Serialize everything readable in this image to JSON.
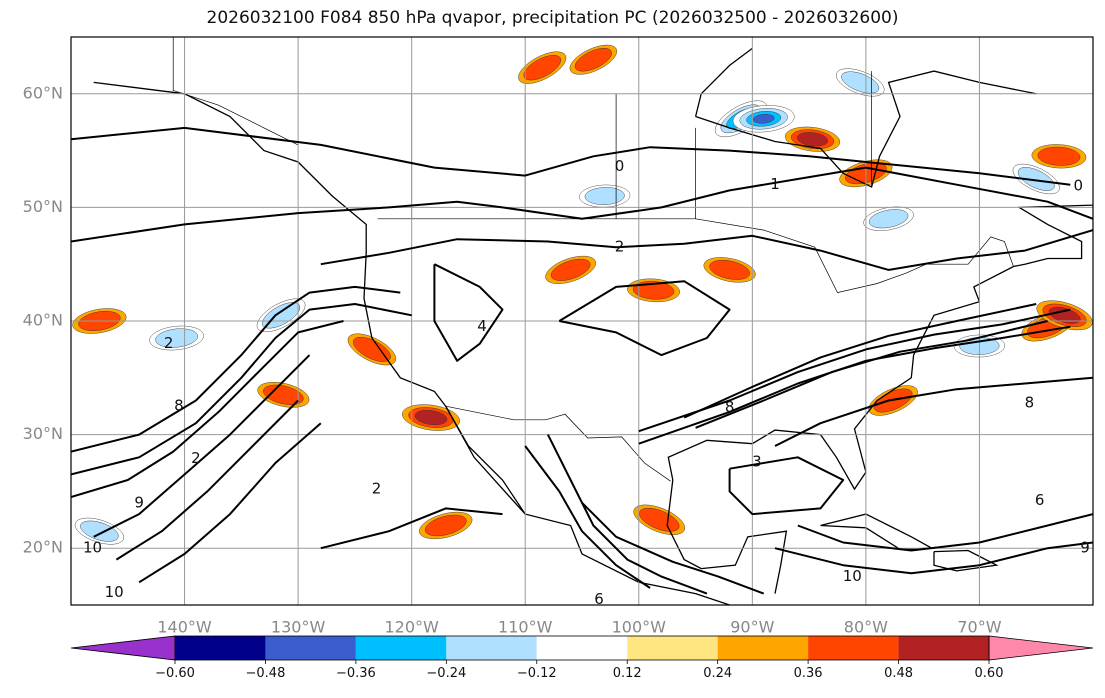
{
  "title": "2026032100 F084 850 hPa qvapor, precipitation PC (2026032500 - 2026032600)",
  "chart_data": {
    "type": "heatmap",
    "title": "2026032100 F084 850 hPa qvapor, precipitation PC (2026032500 - 2026032600)",
    "lon_range": [
      -150,
      -60
    ],
    "lat_range": [
      15,
      65
    ],
    "lat_ticks": [
      {
        "value": 20,
        "label": "20°N"
      },
      {
        "value": 30,
        "label": "30°N"
      },
      {
        "value": 40,
        "label": "40°N"
      },
      {
        "value": 50,
        "label": "50°N"
      },
      {
        "value": 60,
        "label": "60°N"
      }
    ],
    "lon_ticks": [
      {
        "value": -140,
        "label": "140°W"
      },
      {
        "value": -130,
        "label": "130°W"
      },
      {
        "value": -120,
        "label": "120°W"
      },
      {
        "value": -110,
        "label": "110°W"
      },
      {
        "value": -100,
        "label": "100°W"
      },
      {
        "value": -90,
        "label": "90°W"
      },
      {
        "value": -80,
        "label": "80°W"
      },
      {
        "value": -70,
        "label": "70°W"
      }
    ],
    "colorbar": {
      "levels": [
        -0.72,
        -0.6,
        -0.48,
        -0.36,
        -0.24,
        -0.12,
        0.12,
        0.24,
        0.36,
        0.48,
        0.6,
        0.72
      ],
      "tick_labels": [
        "−0.60",
        "−0.48",
        "−0.36",
        "−0.24",
        "−0.12",
        "0.12",
        "0.24",
        "0.36",
        "0.48",
        "0.60"
      ],
      "under_color": "#9932cc",
      "over_color": "#ff88aa",
      "colors": [
        "#00008b",
        "#3a5ccc",
        "#00bfff",
        "#b0e0ff",
        "#ffffff",
        "#ffe680",
        "#ffa500",
        "#ff4500",
        "#b22222"
      ]
    },
    "contour_labels": [
      {
        "text": "0",
        "lon": -101.7,
        "lat": 53.6
      },
      {
        "text": "1",
        "lon": -88.0,
        "lat": 52.0
      },
      {
        "text": "2",
        "lon": -101.7,
        "lat": 46.5
      },
      {
        "text": "0",
        "lon": -61.3,
        "lat": 51.9
      },
      {
        "text": "2",
        "lon": -141.4,
        "lat": 38.0
      },
      {
        "text": "8",
        "lon": -140.5,
        "lat": 32.5
      },
      {
        "text": "2",
        "lon": -139.0,
        "lat": 27.9
      },
      {
        "text": "9",
        "lon": -144.0,
        "lat": 24.0
      },
      {
        "text": "10",
        "lon": -148.1,
        "lat": 20.0
      },
      {
        "text": "10",
        "lon": -146.2,
        "lat": 16.1
      },
      {
        "text": "2",
        "lon": -123.1,
        "lat": 25.2
      },
      {
        "text": "4",
        "lon": -113.8,
        "lat": 39.5
      },
      {
        "text": "8",
        "lon": -92.0,
        "lat": 32.4
      },
      {
        "text": "8",
        "lon": -65.6,
        "lat": 32.8
      },
      {
        "text": "3",
        "lon": -89.6,
        "lat": 27.6
      },
      {
        "text": "6",
        "lon": -64.7,
        "lat": 24.2
      },
      {
        "text": "9",
        "lon": -60.7,
        "lat": 20.0
      },
      {
        "text": "10",
        "lon": -81.2,
        "lat": 17.5
      },
      {
        "text": "6",
        "lon": -103.5,
        "lat": 15.5
      }
    ],
    "precip_blobs": [
      {
        "lon": -91.0,
        "lat": 57.8,
        "value": -0.5
      },
      {
        "lon": -84.7,
        "lat": 56.0,
        "value": 0.42
      },
      {
        "lon": -80.0,
        "lat": 53.0,
        "value": 0.4
      },
      {
        "lon": -80.5,
        "lat": 61.0,
        "value": -0.3
      },
      {
        "lon": -103.0,
        "lat": 51.0,
        "value": -0.3
      },
      {
        "lon": -104.0,
        "lat": 63.0,
        "value": 0.3
      },
      {
        "lon": -92.0,
        "lat": 44.5,
        "value": 0.35
      },
      {
        "lon": -78.0,
        "lat": 49.0,
        "value": -0.3
      },
      {
        "lon": -65.0,
        "lat": 52.5,
        "value": -0.3
      },
      {
        "lon": -63.0,
        "lat": 54.5,
        "value": 0.4
      },
      {
        "lon": -64.0,
        "lat": 39.5,
        "value": 0.4
      },
      {
        "lon": -62.5,
        "lat": 40.5,
        "value": 0.5
      },
      {
        "lon": -140.7,
        "lat": 38.5,
        "value": -0.4
      },
      {
        "lon": -131.5,
        "lat": 40.5,
        "value": -0.38
      },
      {
        "lon": -118.3,
        "lat": 31.5,
        "value": 0.5
      },
      {
        "lon": -117.0,
        "lat": 22.0,
        "value": 0.4
      },
      {
        "lon": -98.2,
        "lat": 22.5,
        "value": 0.4
      },
      {
        "lon": -70.0,
        "lat": 37.8,
        "value": -0.3
      },
      {
        "lon": -77.6,
        "lat": 33.0,
        "value": 0.35
      },
      {
        "lon": -131.3,
        "lat": 33.5,
        "value": 0.35
      },
      {
        "lon": -147.5,
        "lat": 40.0,
        "value": 0.4
      },
      {
        "lon": -123.5,
        "lat": 37.5,
        "value": 0.35
      },
      {
        "lon": -98.7,
        "lat": 42.7,
        "value": 0.35
      },
      {
        "lon": -106.0,
        "lat": 44.5,
        "value": 0.35
      },
      {
        "lon": -147.5,
        "lat": 21.5,
        "value": -0.3
      },
      {
        "lon": -89.0,
        "lat": 57.8,
        "value": -0.6
      },
      {
        "lon": -108.5,
        "lat": 62.3,
        "value": 0.35
      }
    ]
  }
}
